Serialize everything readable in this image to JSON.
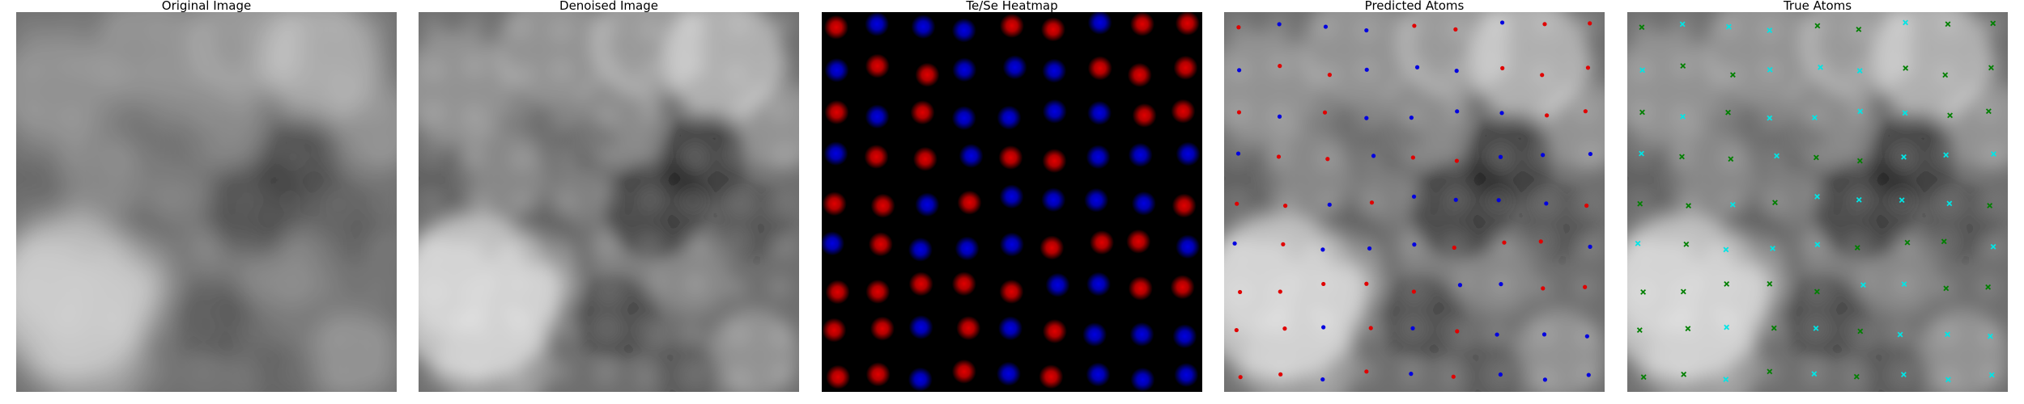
{
  "panels": [
    {
      "id": "original",
      "title": "Original Image"
    },
    {
      "id": "denoised",
      "title": "Denoised Image"
    },
    {
      "id": "heatmap",
      "title": "Te/Se Heatmap"
    },
    {
      "id": "predicted",
      "title": "Predicted Atoms"
    },
    {
      "id": "true",
      "title": "True Atoms"
    }
  ],
  "colors": {
    "background": "#ffffff",
    "heatmap_bg": "#000000",
    "atom_red": "#e00000",
    "atom_blue": "#0000e0",
    "true_cyan": "#00e5e5",
    "true_green": "#008000"
  },
  "lattice": {
    "rows": 9,
    "cols": 9,
    "sites": [
      [
        0,
        0,
        "r"
      ],
      [
        0,
        1,
        "b"
      ],
      [
        0,
        2,
        "b"
      ],
      [
        0,
        3,
        "b"
      ],
      [
        0,
        4,
        "r"
      ],
      [
        0,
        5,
        "r"
      ],
      [
        0,
        6,
        "b"
      ],
      [
        0,
        7,
        "r"
      ],
      [
        0,
        8,
        "r"
      ],
      [
        1,
        0,
        "b"
      ],
      [
        1,
        1,
        "r"
      ],
      [
        1,
        2,
        "r"
      ],
      [
        1,
        3,
        "b"
      ],
      [
        1,
        4,
        "b"
      ],
      [
        1,
        5,
        "b"
      ],
      [
        1,
        6,
        "r"
      ],
      [
        1,
        7,
        "r"
      ],
      [
        1,
        8,
        "r"
      ],
      [
        2,
        0,
        "r"
      ],
      [
        2,
        1,
        "b"
      ],
      [
        2,
        2,
        "r"
      ],
      [
        2,
        3,
        "b"
      ],
      [
        2,
        4,
        "b"
      ],
      [
        2,
        5,
        "b"
      ],
      [
        2,
        6,
        "b"
      ],
      [
        2,
        7,
        "r"
      ],
      [
        2,
        8,
        "r"
      ],
      [
        3,
        0,
        "b"
      ],
      [
        3,
        1,
        "r"
      ],
      [
        3,
        2,
        "r"
      ],
      [
        3,
        3,
        "b"
      ],
      [
        3,
        4,
        "r"
      ],
      [
        3,
        5,
        "r"
      ],
      [
        3,
        6,
        "b"
      ],
      [
        3,
        7,
        "b"
      ],
      [
        3,
        8,
        "b"
      ],
      [
        4,
        0,
        "r"
      ],
      [
        4,
        1,
        "r"
      ],
      [
        4,
        2,
        "b"
      ],
      [
        4,
        3,
        "r"
      ],
      [
        4,
        4,
        "b"
      ],
      [
        4,
        5,
        "b"
      ],
      [
        4,
        6,
        "b"
      ],
      [
        4,
        7,
        "b"
      ],
      [
        4,
        8,
        "r"
      ],
      [
        5,
        0,
        "b"
      ],
      [
        5,
        1,
        "r"
      ],
      [
        5,
        2,
        "b"
      ],
      [
        5,
        3,
        "b"
      ],
      [
        5,
        4,
        "b"
      ],
      [
        5,
        5,
        "r"
      ],
      [
        5,
        6,
        "r"
      ],
      [
        5,
        7,
        "r"
      ],
      [
        5,
        8,
        "b"
      ],
      [
        6,
        0,
        "r"
      ],
      [
        6,
        1,
        "r"
      ],
      [
        6,
        2,
        "r"
      ],
      [
        6,
        3,
        "r"
      ],
      [
        6,
        4,
        "r"
      ],
      [
        6,
        5,
        "b"
      ],
      [
        6,
        6,
        "b"
      ],
      [
        6,
        7,
        "r"
      ],
      [
        6,
        8,
        "r"
      ],
      [
        7,
        0,
        "r"
      ],
      [
        7,
        1,
        "r"
      ],
      [
        7,
        2,
        "b"
      ],
      [
        7,
        3,
        "r"
      ],
      [
        7,
        4,
        "b"
      ],
      [
        7,
        5,
        "r"
      ],
      [
        7,
        6,
        "b"
      ],
      [
        7,
        7,
        "b"
      ],
      [
        7,
        8,
        "b"
      ],
      [
        8,
        0,
        "r"
      ],
      [
        8,
        1,
        "r"
      ],
      [
        8,
        2,
        "b"
      ],
      [
        8,
        3,
        "r"
      ],
      [
        8,
        4,
        "b"
      ],
      [
        8,
        5,
        "r"
      ],
      [
        8,
        6,
        "b"
      ],
      [
        8,
        7,
        "b"
      ],
      [
        8,
        8,
        "b"
      ]
    ]
  },
  "texture": {
    "blobs": [
      [
        0.15,
        0.75,
        0.22,
        0.55
      ],
      [
        0.08,
        0.72,
        0.12,
        0.35
      ],
      [
        0.3,
        0.7,
        0.12,
        0.3
      ],
      [
        0.2,
        0.92,
        0.15,
        0.3
      ],
      [
        0.8,
        0.12,
        0.16,
        0.45
      ],
      [
        0.6,
        0.08,
        0.15,
        0.3
      ],
      [
        0.95,
        0.3,
        0.12,
        0.25
      ],
      [
        0.35,
        0.1,
        0.15,
        0.25
      ],
      [
        0.1,
        0.2,
        0.15,
        0.25
      ],
      [
        0.52,
        0.28,
        0.12,
        0.2
      ],
      [
        0.22,
        0.42,
        0.12,
        0.18
      ],
      [
        0.88,
        0.9,
        0.12,
        0.25
      ],
      [
        0.55,
        0.62,
        0.1,
        0.15
      ],
      [
        0.72,
        0.7,
        0.1,
        0.18
      ],
      [
        0.42,
        0.48,
        0.08,
        0.12
      ],
      [
        0.62,
        0.52,
        0.14,
        -0.4
      ],
      [
        0.75,
        0.38,
        0.12,
        -0.4
      ],
      [
        0.52,
        0.8,
        0.12,
        -0.3
      ],
      [
        0.88,
        0.55,
        0.1,
        -0.25
      ],
      [
        0.7,
        0.95,
        0.1,
        -0.2
      ],
      [
        0.45,
        0.35,
        0.08,
        -0.15
      ],
      [
        0.33,
        0.58,
        0.09,
        -0.15
      ],
      [
        0.05,
        0.45,
        0.1,
        -0.15
      ]
    ]
  }
}
